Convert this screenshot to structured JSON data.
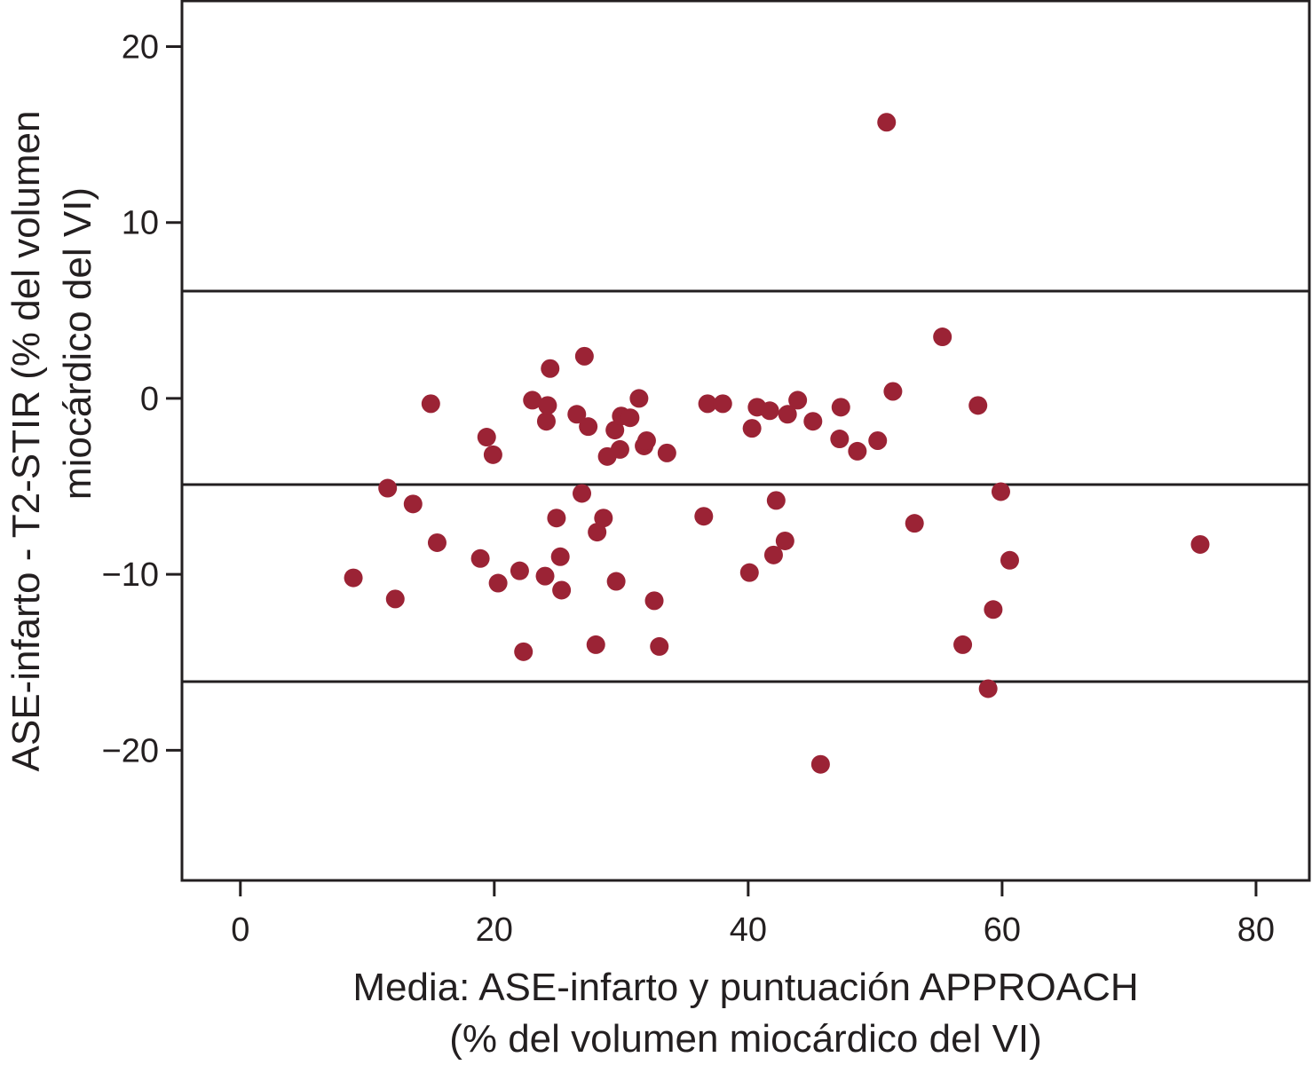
{
  "chart_data": {
    "type": "scatter",
    "xlabel": [
      "Media: ASE-infarto y puntuación APPROACH",
      "(% del volumen miocárdico del VI)"
    ],
    "ylabel": [
      "ASE-infarto - T2-STIR (% del volumen",
      "miocárdico del VI)"
    ],
    "xlim": [
      -4.6,
      84.2
    ],
    "ylim": [
      -27.4,
      22.6
    ],
    "x_ticks": [
      0,
      20,
      40,
      60,
      80
    ],
    "x_tick_labels": [
      "0",
      "20",
      "40",
      "60",
      "80"
    ],
    "y_ticks": [
      20,
      10,
      0,
      -10,
      -20
    ],
    "y_tick_labels": [
      "20",
      "10",
      "0",
      "−10",
      "−20"
    ],
    "grid": false,
    "point_color": "#9b2335",
    "reference_lines": [
      6.1,
      -4.9,
      -16.1
    ],
    "series": [
      {
        "points": [
          [
            8.9,
            -10.2
          ],
          [
            11.6,
            -5.1
          ],
          [
            12.2,
            -11.4
          ],
          [
            13.6,
            -6.0
          ],
          [
            15.0,
            -0.3
          ],
          [
            15.5,
            -8.2
          ],
          [
            18.9,
            -9.1
          ],
          [
            19.4,
            -2.2
          ],
          [
            19.9,
            -3.2
          ],
          [
            20.3,
            -10.5
          ],
          [
            22.0,
            -9.8
          ],
          [
            22.3,
            -14.4
          ],
          [
            23.0,
            -0.1
          ],
          [
            24.0,
            -10.1
          ],
          [
            24.1,
            -1.3
          ],
          [
            24.2,
            -0.4
          ],
          [
            24.4,
            1.7
          ],
          [
            24.9,
            -6.8
          ],
          [
            25.2,
            -9.0
          ],
          [
            25.3,
            -10.9
          ],
          [
            26.5,
            -0.9
          ],
          [
            26.9,
            -5.4
          ],
          [
            27.1,
            2.4
          ],
          [
            27.4,
            -1.6
          ],
          [
            28.0,
            -14.0
          ],
          [
            28.1,
            -7.6
          ],
          [
            28.6,
            -6.8
          ],
          [
            28.9,
            -3.3
          ],
          [
            29.5,
            -1.8
          ],
          [
            29.6,
            -10.4
          ],
          [
            29.9,
            -2.9
          ],
          [
            30.0,
            -1.0
          ],
          [
            30.7,
            -1.1
          ],
          [
            31.4,
            0.0
          ],
          [
            31.8,
            -2.7
          ],
          [
            32.0,
            -2.4
          ],
          [
            32.6,
            -11.5
          ],
          [
            33.0,
            -14.1
          ],
          [
            33.6,
            -3.1
          ],
          [
            36.5,
            -6.7
          ],
          [
            36.8,
            -0.3
          ],
          [
            38.0,
            -0.3
          ],
          [
            40.1,
            -9.9
          ],
          [
            40.3,
            -1.7
          ],
          [
            40.7,
            -0.5
          ],
          [
            41.7,
            -0.7
          ],
          [
            42.0,
            -8.9
          ],
          [
            42.2,
            -5.8
          ],
          [
            42.9,
            -8.1
          ],
          [
            43.1,
            -0.9
          ],
          [
            43.9,
            -0.1
          ],
          [
            45.1,
            -1.3
          ],
          [
            45.7,
            -20.8
          ],
          [
            47.2,
            -2.3
          ],
          [
            47.3,
            -0.5
          ],
          [
            48.6,
            -3.0
          ],
          [
            50.2,
            -2.4
          ],
          [
            50.9,
            15.7
          ],
          [
            51.4,
            0.4
          ],
          [
            53.1,
            -7.1
          ],
          [
            55.3,
            3.5
          ],
          [
            56.9,
            -14.0
          ],
          [
            58.1,
            -0.4
          ],
          [
            58.9,
            -16.5
          ],
          [
            59.3,
            -12.0
          ],
          [
            59.9,
            -5.3
          ],
          [
            60.6,
            -9.2
          ],
          [
            75.6,
            -8.3
          ]
        ]
      }
    ]
  }
}
